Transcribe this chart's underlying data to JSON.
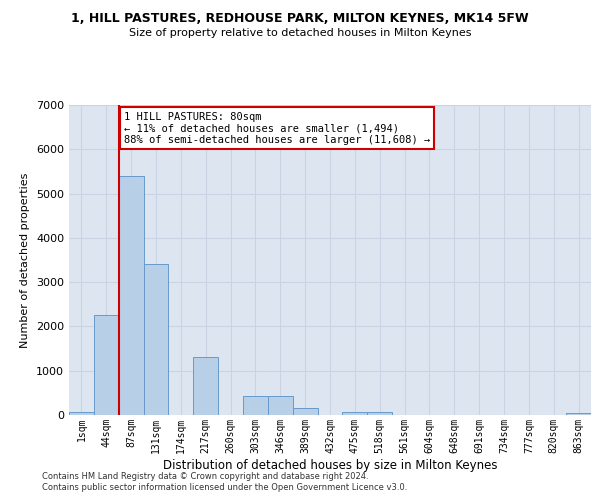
{
  "title": "1, HILL PASTURES, REDHOUSE PARK, MILTON KEYNES, MK14 5FW",
  "subtitle": "Size of property relative to detached houses in Milton Keynes",
  "xlabel": "Distribution of detached houses by size in Milton Keynes",
  "ylabel": "Number of detached properties",
  "categories": [
    "1sqm",
    "44sqm",
    "87sqm",
    "131sqm",
    "174sqm",
    "217sqm",
    "260sqm",
    "303sqm",
    "346sqm",
    "389sqm",
    "432sqm",
    "475sqm",
    "518sqm",
    "561sqm",
    "604sqm",
    "648sqm",
    "691sqm",
    "734sqm",
    "777sqm",
    "820sqm",
    "863sqm"
  ],
  "values": [
    75,
    2250,
    5400,
    3400,
    0,
    1300,
    0,
    430,
    430,
    160,
    0,
    75,
    75,
    0,
    0,
    0,
    0,
    0,
    0,
    0,
    50
  ],
  "bar_color": "#b8cfe8",
  "bar_edge_color": "#6699cc",
  "vline_color": "#cc0000",
  "annotation_text": "1 HILL PASTURES: 80sqm\n← 11% of detached houses are smaller (1,494)\n88% of semi-detached houses are larger (11,608) →",
  "annotation_box_color": "#ffffff",
  "annotation_box_edge": "#cc0000",
  "ylim": [
    0,
    7000
  ],
  "yticks": [
    0,
    1000,
    2000,
    3000,
    4000,
    5000,
    6000,
    7000
  ],
  "grid_color": "#c8d4e4",
  "bg_color": "#dde6f0",
  "footer1": "Contains HM Land Registry data © Crown copyright and database right 2024.",
  "footer2": "Contains public sector information licensed under the Open Government Licence v3.0."
}
